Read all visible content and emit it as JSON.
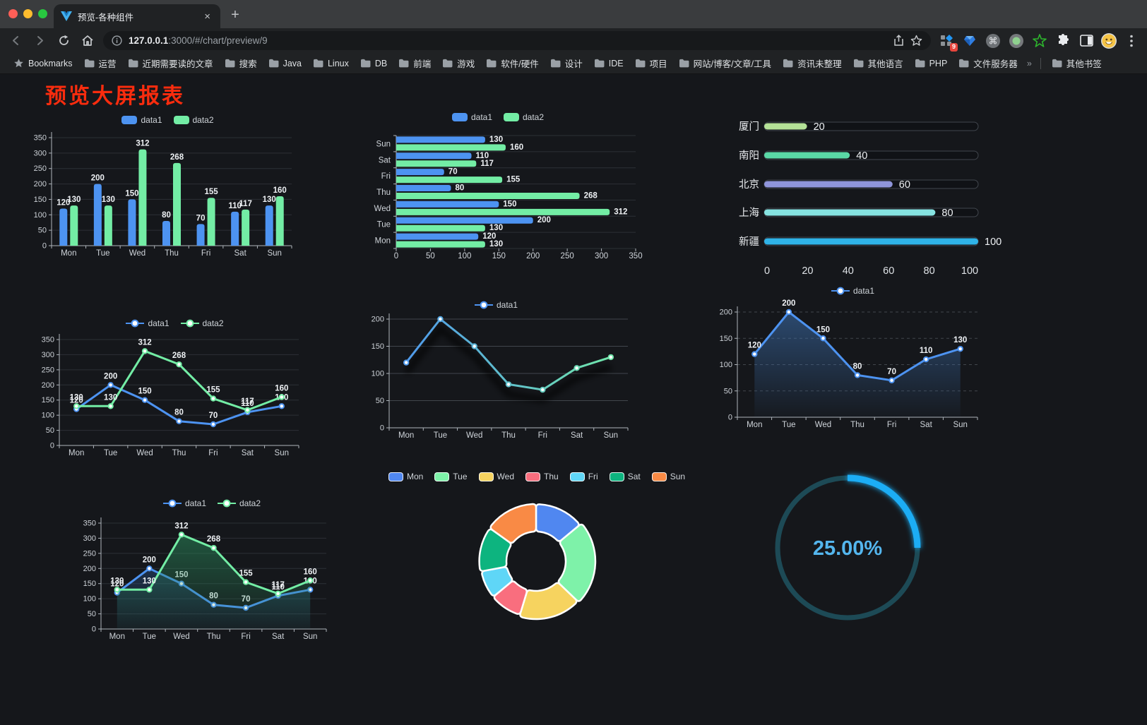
{
  "browser": {
    "tab_title": "预览-各种组件",
    "close_tab": "×",
    "new_tab": "+",
    "url": {
      "host": "127.0.0.1",
      "rest": ":3000/#/chart/preview/9"
    },
    "extension_badge": "9",
    "bookmarks_bar": {
      "label": "Bookmarks",
      "folders": [
        "运营",
        "近期需要读的文章",
        "搜索",
        "Java",
        "Linux",
        "DB",
        "前端",
        "游戏",
        "软件/硬件",
        "设计",
        "IDE",
        "项目",
        "网站/博客/文章/工具",
        "资讯未整理",
        "其他语言",
        "PHP",
        "文件服务器"
      ],
      "overflow": "»",
      "other_bookmarks": "其他书签"
    }
  },
  "page": {
    "title": "预览大屏报表",
    "title_color": "#fa2c0e"
  },
  "chart_data": [
    {
      "id": "c1",
      "type": "bar",
      "title": "grouped-bar",
      "categories": [
        "Mon",
        "Tue",
        "Wed",
        "Thu",
        "Fri",
        "Sat",
        "Sun"
      ],
      "series": [
        {
          "name": "data1",
          "color": "#4d93f1",
          "values": [
            120,
            200,
            150,
            80,
            70,
            110,
            130
          ]
        },
        {
          "name": "data2",
          "color": "#73eda5",
          "values": [
            130,
            130,
            312,
            268,
            155,
            117,
            160
          ]
        }
      ],
      "ylim": [
        0,
        350
      ],
      "ytick": 50,
      "grid": true,
      "legend_position": "top"
    },
    {
      "id": "c2",
      "type": "hbar",
      "title": "grouped-horizontal-bar",
      "categories": [
        "Sun",
        "Sat",
        "Fri",
        "Thu",
        "Wed",
        "Tue",
        "Mon"
      ],
      "series": [
        {
          "name": "data1",
          "color": "#4d93f1",
          "values": [
            130,
            110,
            70,
            80,
            150,
            200,
            120
          ]
        },
        {
          "name": "data2",
          "color": "#73eda5",
          "values": [
            160,
            117,
            155,
            268,
            312,
            130,
            130
          ]
        }
      ],
      "xlim": [
        0,
        350
      ],
      "xtick": 50,
      "legend_position": "top"
    },
    {
      "id": "c3",
      "type": "progress",
      "title": "city-progress-bars",
      "max": 100,
      "xticks": [
        0,
        20,
        40,
        60,
        80,
        100
      ],
      "items": [
        {
          "label": "厦门",
          "value": 20,
          "color": "#b4e197"
        },
        {
          "label": "南阳",
          "value": 40,
          "color": "#5ad8a6"
        },
        {
          "label": "北京",
          "value": 60,
          "color": "#8f95db"
        },
        {
          "label": "上海",
          "value": 80,
          "color": "#86e3e1"
        },
        {
          "label": "新疆",
          "value": 100,
          "color": "#2fb3e8"
        }
      ]
    },
    {
      "id": "c4",
      "type": "line",
      "title": "dual-line",
      "categories": [
        "Mon",
        "Tue",
        "Wed",
        "Thu",
        "Fri",
        "Sat",
        "Sun"
      ],
      "series": [
        {
          "name": "data1",
          "color": "#4d93f1",
          "values": [
            120,
            200,
            150,
            80,
            70,
            110,
            130
          ]
        },
        {
          "name": "data2",
          "color": "#73eda5",
          "values": [
            130,
            130,
            312,
            268,
            155,
            117,
            160
          ]
        }
      ],
      "ylim": [
        0,
        350
      ],
      "ytick": 50,
      "labels": true
    },
    {
      "id": "c5",
      "type": "line",
      "title": "gradient-line-with-shadow",
      "categories": [
        "Mon",
        "Tue",
        "Wed",
        "Thu",
        "Fri",
        "Sat",
        "Sun"
      ],
      "series": [
        {
          "name": "data1",
          "color": "#4d93f1",
          "gradient": [
            "#4d93f1",
            "#73eda5"
          ],
          "shadow": true,
          "values": [
            120,
            200,
            150,
            80,
            70,
            110,
            130
          ]
        }
      ],
      "ylim": [
        0,
        200
      ],
      "ytick": 50,
      "labels": false
    },
    {
      "id": "c6",
      "type": "line",
      "title": "area-line",
      "categories": [
        "Mon",
        "Tue",
        "Wed",
        "Thu",
        "Fri",
        "Sat",
        "Sun"
      ],
      "series": [
        {
          "name": "data1",
          "color": "#4d93f1",
          "area": [
            "rgba(62,115,180,0.55)",
            "rgba(62,115,180,0.03)"
          ],
          "values": [
            120,
            200,
            150,
            80,
            70,
            110,
            130
          ]
        }
      ],
      "ylim": [
        0,
        200
      ],
      "ytick": 50,
      "labels": true,
      "dashed": true
    },
    {
      "id": "c7",
      "type": "line",
      "title": "dual-line-area",
      "categories": [
        "Mon",
        "Tue",
        "Wed",
        "Thu",
        "Fri",
        "Sat",
        "Sun"
      ],
      "series": [
        {
          "name": "data1",
          "color": "#4d93f1",
          "area": [
            "rgba(45,95,165,0.55)",
            "rgba(45,95,165,0.05)"
          ],
          "values": [
            120,
            200,
            150,
            80,
            70,
            110,
            130
          ]
        },
        {
          "name": "data2",
          "color": "#73eda5",
          "area": [
            "rgba(42,140,92,0.6)",
            "rgba(42,140,92,0.05)"
          ],
          "values": [
            130,
            130,
            312,
            268,
            155,
            117,
            160
          ]
        }
      ],
      "ylim": [
        0,
        350
      ],
      "ytick": 50,
      "labels": true
    },
    {
      "id": "c8",
      "type": "pie",
      "title": "rose-donut",
      "items": [
        {
          "label": "Mon",
          "value": 120,
          "color": "#5087f0"
        },
        {
          "label": "Tue",
          "value": 200,
          "color": "#7ef2a9"
        },
        {
          "label": "Wed",
          "value": 150,
          "color": "#f6d35f"
        },
        {
          "label": "Thu",
          "value": 80,
          "color": "#f96e7e"
        },
        {
          "label": "Fri",
          "value": 70,
          "color": "#5fd6f7"
        },
        {
          "label": "Sat",
          "value": 110,
          "color": "#0db47f"
        },
        {
          "label": "Sun",
          "value": 130,
          "color": "#f98a45"
        }
      ],
      "legend_position": "top"
    },
    {
      "id": "c9",
      "type": "gauge",
      "title": "ring-progress",
      "percent": 25,
      "label": "25.00%",
      "color": "#1badf5",
      "track": "#1d4a56",
      "text_color": "#54b6ee"
    }
  ]
}
